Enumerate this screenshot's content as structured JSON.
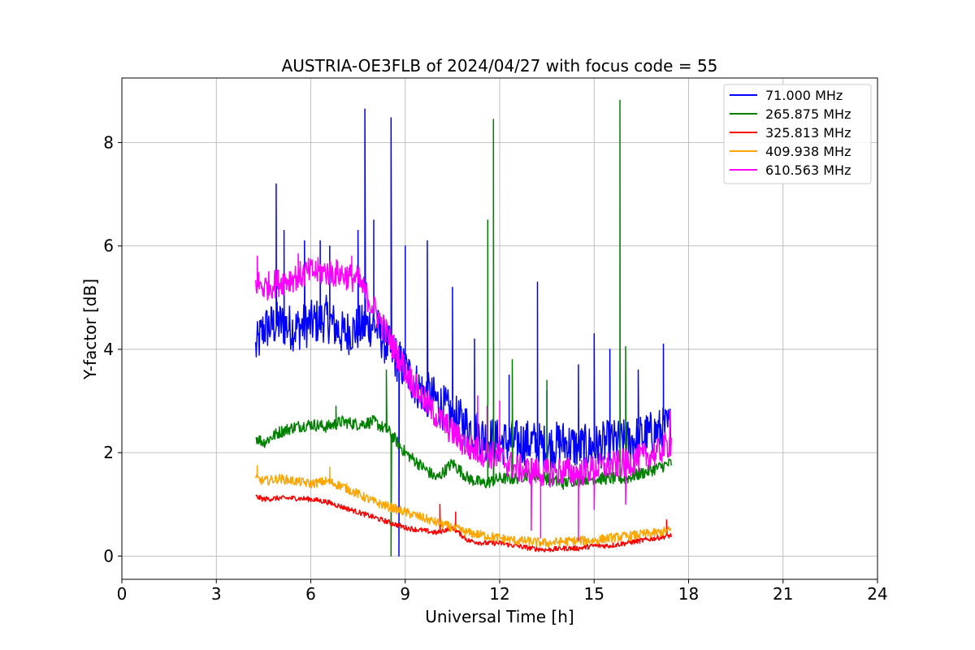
{
  "chart_data": {
    "type": "line",
    "title": "AUSTRIA-OE3FLB of 2024/04/27 with focus code = 55",
    "xlabel": "Universal Time [h]",
    "ylabel": "Y-factor [dB]",
    "xlim": [
      0,
      24
    ],
    "ylim": [
      -0.45,
      9.25
    ],
    "xticks": [
      0,
      3,
      6,
      9,
      12,
      15,
      18,
      21,
      24
    ],
    "yticks": [
      0,
      2,
      4,
      6,
      8
    ],
    "grid": true,
    "legend_position": "upper right",
    "series": [
      {
        "name": " 71.000 MHz",
        "color": "#0000ff",
        "points": [
          [
            4.25,
            4.0
          ],
          [
            4.5,
            4.4
          ],
          [
            5.0,
            4.5
          ],
          [
            5.5,
            4.4
          ],
          [
            6.0,
            4.5
          ],
          [
            6.5,
            4.6
          ],
          [
            7.0,
            4.3
          ],
          [
            7.5,
            4.4
          ],
          [
            8.0,
            4.5
          ],
          [
            8.5,
            4.0
          ],
          [
            9.0,
            3.6
          ],
          [
            9.5,
            3.2
          ],
          [
            10.0,
            3.0
          ],
          [
            10.5,
            2.7
          ],
          [
            11.0,
            2.5
          ],
          [
            11.5,
            2.3
          ],
          [
            12.0,
            2.2
          ],
          [
            12.5,
            2.2
          ],
          [
            13.0,
            2.2
          ],
          [
            13.5,
            2.1
          ],
          [
            14.0,
            2.2
          ],
          [
            14.5,
            2.1
          ],
          [
            15.0,
            2.1
          ],
          [
            15.5,
            2.2
          ],
          [
            16.0,
            2.2
          ],
          [
            16.5,
            2.3
          ],
          [
            17.0,
            2.4
          ],
          [
            17.45,
            2.5
          ]
        ],
        "spikes": [
          [
            4.9,
            7.2
          ],
          [
            5.15,
            6.3
          ],
          [
            6.3,
            6.1
          ],
          [
            7.5,
            6.3
          ],
          [
            7.72,
            8.65
          ],
          [
            8.0,
            6.5
          ],
          [
            8.55,
            8.48
          ],
          [
            8.8,
            0.0
          ],
          [
            9.0,
            6.0
          ],
          [
            9.7,
            6.1
          ],
          [
            10.5,
            5.2
          ],
          [
            11.2,
            4.2
          ],
          [
            12.3,
            3.5
          ],
          [
            13.2,
            5.3
          ],
          [
            13.5,
            3.2
          ],
          [
            14.5,
            3.7
          ],
          [
            15.0,
            4.3
          ],
          [
            15.5,
            4.0
          ],
          [
            16.4,
            3.6
          ],
          [
            17.2,
            4.1
          ],
          [
            5.8,
            6.1
          ],
          [
            6.6,
            6.0
          ]
        ]
      },
      {
        "name": " 265.875 MHz",
        "color": "#008000",
        "points": [
          [
            4.25,
            2.3
          ],
          [
            4.5,
            2.2
          ],
          [
            5.0,
            2.4
          ],
          [
            5.5,
            2.5
          ],
          [
            6.0,
            2.55
          ],
          [
            6.5,
            2.5
          ],
          [
            7.0,
            2.6
          ],
          [
            7.5,
            2.55
          ],
          [
            8.0,
            2.6
          ],
          [
            8.5,
            2.4
          ],
          [
            9.0,
            2.0
          ],
          [
            9.5,
            1.75
          ],
          [
            10.0,
            1.5
          ],
          [
            10.5,
            1.8
          ],
          [
            11.0,
            1.5
          ],
          [
            11.5,
            1.4
          ],
          [
            12.0,
            1.5
          ],
          [
            12.5,
            1.5
          ],
          [
            13.0,
            1.6
          ],
          [
            13.5,
            1.5
          ],
          [
            14.0,
            1.4
          ],
          [
            14.5,
            1.5
          ],
          [
            15.0,
            1.5
          ],
          [
            15.5,
            1.5
          ],
          [
            16.0,
            1.5
          ],
          [
            16.5,
            1.6
          ],
          [
            17.0,
            1.7
          ],
          [
            17.45,
            1.8
          ]
        ],
        "spikes": [
          [
            8.4,
            3.6
          ],
          [
            8.55,
            0.0
          ],
          [
            11.62,
            6.5
          ],
          [
            11.8,
            8.45
          ],
          [
            12.4,
            3.8
          ],
          [
            13.5,
            3.4
          ],
          [
            15.82,
            8.82
          ],
          [
            16.0,
            4.05
          ],
          [
            6.8,
            2.9
          ]
        ]
      },
      {
        "name": " 325.813 MHz",
        "color": "#ff0000",
        "points": [
          [
            4.25,
            1.15
          ],
          [
            4.5,
            1.1
          ],
          [
            5.0,
            1.12
          ],
          [
            5.5,
            1.12
          ],
          [
            6.0,
            1.1
          ],
          [
            6.5,
            1.05
          ],
          [
            7.0,
            0.95
          ],
          [
            7.5,
            0.85
          ],
          [
            8.0,
            0.75
          ],
          [
            8.5,
            0.65
          ],
          [
            9.0,
            0.55
          ],
          [
            9.5,
            0.5
          ],
          [
            10.0,
            0.45
          ],
          [
            10.5,
            0.55
          ],
          [
            11.0,
            0.3
          ],
          [
            11.5,
            0.25
          ],
          [
            12.0,
            0.25
          ],
          [
            12.5,
            0.2
          ],
          [
            13.0,
            0.15
          ],
          [
            13.5,
            0.12
          ],
          [
            14.0,
            0.15
          ],
          [
            14.5,
            0.15
          ],
          [
            15.0,
            0.2
          ],
          [
            15.5,
            0.2
          ],
          [
            16.0,
            0.25
          ],
          [
            16.5,
            0.3
          ],
          [
            17.0,
            0.35
          ],
          [
            17.45,
            0.4
          ]
        ],
        "spikes": [
          [
            10.1,
            1.0
          ],
          [
            10.6,
            0.85
          ],
          [
            17.3,
            0.7
          ]
        ]
      },
      {
        "name": " 409.938 MHz",
        "color": "#ffa500",
        "points": [
          [
            4.25,
            1.5
          ],
          [
            4.5,
            1.45
          ],
          [
            5.0,
            1.5
          ],
          [
            5.5,
            1.45
          ],
          [
            6.0,
            1.4
          ],
          [
            6.5,
            1.45
          ],
          [
            7.0,
            1.35
          ],
          [
            7.5,
            1.2
          ],
          [
            8.0,
            1.05
          ],
          [
            8.5,
            0.95
          ],
          [
            9.0,
            0.85
          ],
          [
            9.5,
            0.75
          ],
          [
            10.0,
            0.65
          ],
          [
            10.5,
            0.55
          ],
          [
            11.0,
            0.45
          ],
          [
            11.5,
            0.4
          ],
          [
            12.0,
            0.35
          ],
          [
            12.5,
            0.3
          ],
          [
            13.0,
            0.28
          ],
          [
            13.5,
            0.25
          ],
          [
            14.0,
            0.28
          ],
          [
            14.5,
            0.3
          ],
          [
            15.0,
            0.3
          ],
          [
            15.5,
            0.35
          ],
          [
            16.0,
            0.38
          ],
          [
            16.5,
            0.42
          ],
          [
            17.0,
            0.45
          ],
          [
            17.45,
            0.5
          ]
        ],
        "spikes": [
          [
            4.3,
            1.75
          ],
          [
            6.6,
            1.72
          ]
        ]
      },
      {
        "name": " 610.563 MHz",
        "color": "#ff00ff",
        "points": [
          [
            4.25,
            5.3
          ],
          [
            4.5,
            5.2
          ],
          [
            5.0,
            5.3
          ],
          [
            5.5,
            5.4
          ],
          [
            6.0,
            5.5
          ],
          [
            6.5,
            5.5
          ],
          [
            7.0,
            5.45
          ],
          [
            7.5,
            5.35
          ],
          [
            8.0,
            4.8
          ],
          [
            8.5,
            4.2
          ],
          [
            9.0,
            3.6
          ],
          [
            9.5,
            3.1
          ],
          [
            10.0,
            2.7
          ],
          [
            10.5,
            2.4
          ],
          [
            11.0,
            2.1
          ],
          [
            11.5,
            2.0
          ],
          [
            12.0,
            1.9
          ],
          [
            12.5,
            1.7
          ],
          [
            13.0,
            1.65
          ],
          [
            13.5,
            1.6
          ],
          [
            14.0,
            1.65
          ],
          [
            14.5,
            1.6
          ],
          [
            15.0,
            1.7
          ],
          [
            15.5,
            1.75
          ],
          [
            16.0,
            1.8
          ],
          [
            16.5,
            1.9
          ],
          [
            17.0,
            2.0
          ],
          [
            17.45,
            2.2
          ]
        ],
        "spikes": [
          [
            4.3,
            5.8
          ],
          [
            5.6,
            5.85
          ],
          [
            7.3,
            5.8
          ],
          [
            11.3,
            3.1
          ],
          [
            11.6,
            2.9
          ],
          [
            12.0,
            3.0
          ],
          [
            13.0,
            0.5
          ],
          [
            13.3,
            0.35
          ],
          [
            14.5,
            0.3
          ],
          [
            15.0,
            0.9
          ],
          [
            16.0,
            1.0
          ],
          [
            17.4,
            2.8
          ]
        ]
      }
    ]
  }
}
